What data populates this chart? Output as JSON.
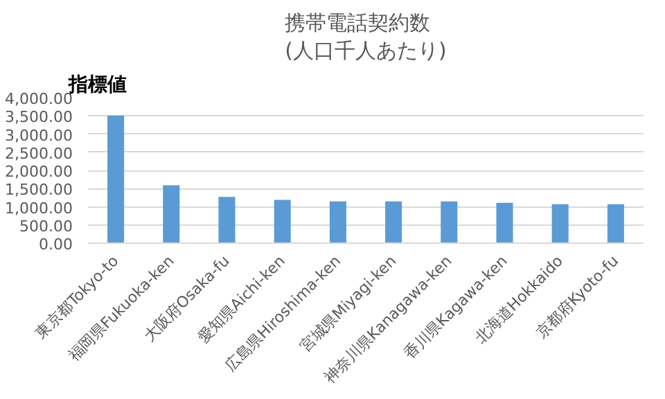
{
  "chart_data": {
    "type": "bar",
    "title": "携帯電話契約数\n(人口千人あたり)",
    "ylabel": "指標値",
    "categories": [
      "東京都Tokyo-to",
      "福岡県Fukuoka-ken",
      "大阪府Osaka-fu",
      "愛知県Aichi-ken",
      "広島県Hiroshima-ken",
      "宮城県Miyagi-ken",
      "神奈川県Kanagawa-ken",
      "香川県Kagawa-ken",
      "北海道Hokkaido",
      "京都府Kyoto-fu"
    ],
    "values": [
      3510,
      1590,
      1270,
      1190,
      1150,
      1150,
      1150,
      1110,
      1070,
      1070
    ],
    "color": "#5b9bd5",
    "ylim": [
      0,
      4000
    ],
    "yticks": [
      {
        "value": 0,
        "label": "0.00"
      },
      {
        "value": 500,
        "label": "500.00"
      },
      {
        "value": 1000,
        "label": "1,000.00"
      },
      {
        "value": 1500,
        "label": "1,500.00"
      },
      {
        "value": 2000,
        "label": "2,000.00"
      },
      {
        "value": 2500,
        "label": "2,500.00"
      },
      {
        "value": 3000,
        "label": "3,000.00"
      },
      {
        "value": 3500,
        "label": "3,500.00"
      },
      {
        "value": 4000,
        "label": "4,000.00"
      }
    ],
    "grid": "y",
    "legend": false
  }
}
